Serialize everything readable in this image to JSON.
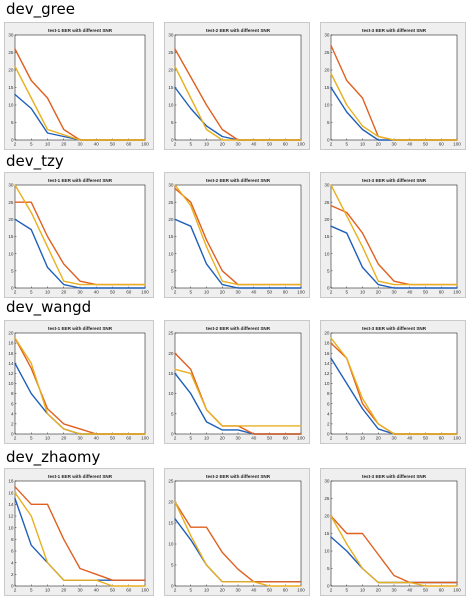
{
  "rows": [
    {
      "label": "dev_gree"
    },
    {
      "label": "dev_tzy"
    },
    {
      "label": "dev_wangd"
    },
    {
      "label": "dev_zhaomy"
    }
  ],
  "colors": {
    "blue": "#1f5fb8",
    "orange": "#e06020",
    "yellow": "#e8b020"
  },
  "chart_data": [
    {
      "type": "line",
      "title": "test-1 EER with different SNR",
      "categories": [
        "2",
        "5",
        "10",
        "20",
        "30",
        "40",
        "50",
        "60",
        "100"
      ],
      "yticks": [
        "0",
        "5",
        "10",
        "15",
        "20",
        "25",
        "30"
      ],
      "ylim": [
        0,
        30
      ],
      "series": [
        {
          "color": "#1f5fb8",
          "values": [
            13,
            9,
            2,
            1,
            0,
            0,
            0,
            0,
            0
          ]
        },
        {
          "color": "#e06020",
          "values": [
            26,
            17,
            12,
            3,
            0,
            0,
            0,
            0,
            0
          ]
        },
        {
          "color": "#e8b020",
          "values": [
            21,
            12,
            3,
            1.5,
            0,
            0,
            0,
            0,
            0
          ]
        }
      ]
    },
    {
      "type": "line",
      "title": "test-2 EER with different SNR",
      "categories": [
        "2",
        "5",
        "10",
        "20",
        "30",
        "40",
        "50",
        "60",
        "100"
      ],
      "yticks": [
        "0",
        "5",
        "10",
        "15",
        "20",
        "25",
        "30"
      ],
      "ylim": [
        0,
        30
      ],
      "series": [
        {
          "color": "#1f5fb8",
          "values": [
            15,
            9,
            4,
            1,
            0,
            0,
            0,
            0,
            0
          ]
        },
        {
          "color": "#e06020",
          "values": [
            26,
            18,
            10,
            3,
            0,
            0,
            0,
            0,
            0
          ]
        },
        {
          "color": "#e8b020",
          "values": [
            21,
            12,
            3,
            0,
            0,
            0,
            0,
            0,
            0
          ]
        }
      ]
    },
    {
      "type": "line",
      "title": "test-3 EER with different SNR",
      "categories": [
        "2",
        "5",
        "10",
        "20",
        "30",
        "40",
        "50",
        "60",
        "100"
      ],
      "yticks": [
        "0",
        "5",
        "10",
        "15",
        "20",
        "25",
        "30"
      ],
      "ylim": [
        0,
        30
      ],
      "series": [
        {
          "color": "#1f5fb8",
          "values": [
            15,
            8,
            3,
            0,
            0,
            0,
            0,
            0,
            0
          ]
        },
        {
          "color": "#e06020",
          "values": [
            27,
            17,
            12,
            1,
            0,
            0,
            0,
            0,
            0
          ]
        },
        {
          "color": "#e8b020",
          "values": [
            19,
            10,
            4,
            1,
            0,
            0,
            0,
            0,
            0
          ]
        }
      ]
    },
    {
      "type": "line",
      "title": "test-1 EER with different SNR",
      "categories": [
        "2",
        "5",
        "10",
        "20",
        "30",
        "40",
        "50",
        "60",
        "100"
      ],
      "yticks": [
        "0",
        "5",
        "10",
        "15",
        "20",
        "25",
        "30"
      ],
      "ylim": [
        0,
        30
      ],
      "series": [
        {
          "color": "#1f5fb8",
          "values": [
            20,
            17,
            6,
            1,
            0,
            0,
            0,
            0,
            0
          ]
        },
        {
          "color": "#e06020",
          "values": [
            25,
            25,
            15,
            7,
            2,
            1,
            1,
            1,
            1
          ]
        },
        {
          "color": "#e8b020",
          "values": [
            30,
            22,
            12,
            2,
            1,
            1,
            1,
            1,
            1
          ]
        }
      ]
    },
    {
      "type": "line",
      "title": "test-2 EER with different SNR",
      "categories": [
        "2",
        "5",
        "10",
        "20",
        "30",
        "40",
        "50",
        "60",
        "100"
      ],
      "yticks": [
        "0",
        "5",
        "10",
        "15",
        "20",
        "25",
        "30"
      ],
      "ylim": [
        0,
        30
      ],
      "series": [
        {
          "color": "#1f5fb8",
          "values": [
            20,
            18,
            7,
            1,
            0,
            0,
            0,
            0,
            0
          ]
        },
        {
          "color": "#e06020",
          "values": [
            29,
            25,
            14,
            5,
            1,
            1,
            1,
            1,
            1
          ]
        },
        {
          "color": "#e8b020",
          "values": [
            30,
            24,
            12,
            2,
            1,
            1,
            1,
            1,
            1
          ]
        }
      ]
    },
    {
      "type": "line",
      "title": "test-3 EER with different SNR",
      "categories": [
        "2",
        "5",
        "10",
        "20",
        "30",
        "40",
        "50",
        "60",
        "100"
      ],
      "yticks": [
        "0",
        "5",
        "10",
        "15",
        "20",
        "25",
        "30"
      ],
      "ylim": [
        0,
        30
      ],
      "series": [
        {
          "color": "#1f5fb8",
          "values": [
            18,
            16,
            6,
            1,
            0,
            0,
            0,
            0,
            0
          ]
        },
        {
          "color": "#e06020",
          "values": [
            24,
            22,
            16,
            7,
            2,
            1,
            1,
            1,
            1
          ]
        },
        {
          "color": "#e8b020",
          "values": [
            30,
            21,
            12,
            2,
            1,
            1,
            1,
            1,
            1
          ]
        }
      ]
    },
    {
      "type": "line",
      "title": "test-1 EER with different SNR",
      "categories": [
        "2",
        "5",
        "10",
        "20",
        "30",
        "40",
        "50",
        "60",
        "100"
      ],
      "yticks": [
        "0",
        "2",
        "4",
        "6",
        "8",
        "10",
        "12",
        "14",
        "16",
        "18",
        "20"
      ],
      "ylim": [
        0,
        20
      ],
      "series": [
        {
          "color": "#1f5fb8",
          "values": [
            14,
            8,
            4,
            1,
            0,
            0,
            0,
            0,
            0
          ]
        },
        {
          "color": "#e06020",
          "values": [
            19,
            13,
            5,
            2,
            1,
            0,
            0,
            0,
            0
          ]
        },
        {
          "color": "#e8b020",
          "values": [
            19,
            14,
            4,
            1,
            0,
            0,
            0,
            0,
            0
          ]
        }
      ]
    },
    {
      "type": "line",
      "title": "test-2 EER with different SNR",
      "categories": [
        "2",
        "5",
        "10",
        "20",
        "30",
        "40",
        "50",
        "60",
        "100"
      ],
      "yticks": [
        "0",
        "5",
        "10",
        "15",
        "20",
        "25"
      ],
      "ylim": [
        0,
        25
      ],
      "series": [
        {
          "color": "#1f5fb8",
          "values": [
            15,
            10,
            3,
            1,
            1,
            0,
            0,
            0,
            0
          ]
        },
        {
          "color": "#e06020",
          "values": [
            20,
            16,
            6,
            2,
            2,
            0,
            0,
            0,
            0
          ]
        },
        {
          "color": "#e8b020",
          "values": [
            16,
            15,
            6,
            2,
            2,
            2,
            2,
            2,
            2
          ]
        }
      ]
    },
    {
      "type": "line",
      "title": "test-3 EER with different SNR",
      "categories": [
        "2",
        "5",
        "10",
        "20",
        "30",
        "40",
        "50",
        "60",
        "100"
      ],
      "yticks": [
        "0",
        "2",
        "4",
        "6",
        "8",
        "10",
        "12",
        "14",
        "16",
        "18",
        "20"
      ],
      "ylim": [
        0,
        20
      ],
      "series": [
        {
          "color": "#1f5fb8",
          "values": [
            15,
            10,
            5,
            1,
            0,
            0,
            0,
            0,
            0
          ]
        },
        {
          "color": "#e06020",
          "values": [
            18,
            15,
            6,
            2,
            0,
            0,
            0,
            0,
            0
          ]
        },
        {
          "color": "#e8b020",
          "values": [
            19,
            15,
            7,
            2,
            0,
            0,
            0,
            0,
            0
          ]
        }
      ]
    },
    {
      "type": "line",
      "title": "test-1 EER with different SNR",
      "categories": [
        "2",
        "5",
        "10",
        "20",
        "30",
        "40",
        "50",
        "60",
        "100"
      ],
      "yticks": [
        "0",
        "2",
        "4",
        "6",
        "8",
        "10",
        "12",
        "14",
        "16",
        "18"
      ],
      "ylim": [
        0,
        18
      ],
      "series": [
        {
          "color": "#1f5fb8",
          "values": [
            15,
            7,
            4,
            1,
            1,
            1,
            1,
            1,
            1
          ]
        },
        {
          "color": "#e06020",
          "values": [
            17,
            14,
            14,
            8,
            3,
            2,
            1,
            1,
            1
          ]
        },
        {
          "color": "#e8b020",
          "values": [
            16,
            12,
            4,
            1,
            1,
            1,
            0,
            0,
            0
          ]
        }
      ]
    },
    {
      "type": "line",
      "title": "test-2 EER with different SNR",
      "categories": [
        "2",
        "5",
        "10",
        "20",
        "30",
        "40",
        "50",
        "60",
        "100"
      ],
      "yticks": [
        "0",
        "5",
        "10",
        "15",
        "20",
        "25"
      ],
      "ylim": [
        0,
        25
      ],
      "series": [
        {
          "color": "#1f5fb8",
          "values": [
            16,
            11,
            5,
            1,
            1,
            1,
            1,
            1,
            1
          ]
        },
        {
          "color": "#e06020",
          "values": [
            20,
            14,
            14,
            8,
            4,
            1,
            1,
            1,
            1
          ]
        },
        {
          "color": "#e8b020",
          "values": [
            20,
            12,
            5,
            1,
            1,
            1,
            0,
            0,
            0
          ]
        }
      ]
    },
    {
      "type": "line",
      "title": "test-3 EER with different SNR",
      "categories": [
        "2",
        "5",
        "10",
        "20",
        "30",
        "40",
        "50",
        "60",
        "100"
      ],
      "yticks": [
        "0",
        "5",
        "10",
        "15",
        "20",
        "25",
        "30"
      ],
      "ylim": [
        0,
        30
      ],
      "series": [
        {
          "color": "#1f5fb8",
          "values": [
            14,
            10,
            5,
            1,
            1,
            1,
            1,
            1,
            1
          ]
        },
        {
          "color": "#e06020",
          "values": [
            20,
            15,
            15,
            9,
            3,
            1,
            1,
            1,
            1
          ]
        },
        {
          "color": "#e8b020",
          "values": [
            20,
            12,
            5,
            1,
            1,
            1,
            0,
            0,
            0
          ]
        }
      ]
    }
  ]
}
